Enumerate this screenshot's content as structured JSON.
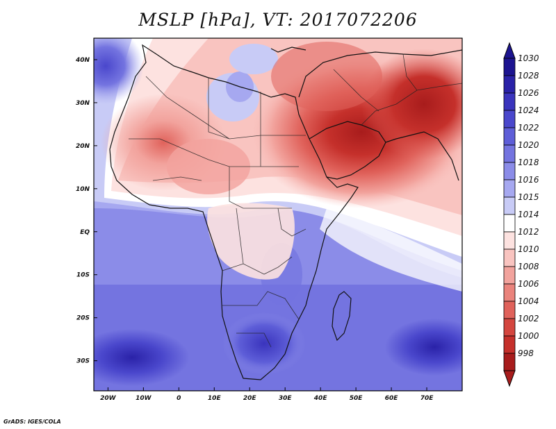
{
  "title": "MSLP [hPa], VT: 2017072206",
  "credit": "GrADS: IGES/COLA",
  "map": {
    "lon_range": [
      -24,
      80
    ],
    "lat_range": [
      -37,
      45
    ],
    "lat_ticks": [
      {
        "lat": 40,
        "label": "40N"
      },
      {
        "lat": 30,
        "label": "30N"
      },
      {
        "lat": 20,
        "label": "20N"
      },
      {
        "lat": 10,
        "label": "10N"
      },
      {
        "lat": 0,
        "label": "EQ"
      },
      {
        "lat": -10,
        "label": "10S"
      },
      {
        "lat": -20,
        "label": "20S"
      },
      {
        "lat": -30,
        "label": "30S"
      }
    ],
    "lon_ticks": [
      {
        "lon": -20,
        "label": "20W"
      },
      {
        "lon": -10,
        "label": "10W"
      },
      {
        "lon": 0,
        "label": "0"
      },
      {
        "lon": 10,
        "label": "10E"
      },
      {
        "lon": 20,
        "label": "20E"
      },
      {
        "lon": 30,
        "label": "30E"
      },
      {
        "lon": 40,
        "label": "40E"
      },
      {
        "lon": 50,
        "label": "50E"
      },
      {
        "lon": 60,
        "label": "60E"
      },
      {
        "lon": 70,
        "label": "70E"
      }
    ]
  },
  "colorbar": {
    "levels": [
      {
        "label": "1030",
        "color": "#1c1490"
      },
      {
        "label": "1028",
        "color": "#2a22a8"
      },
      {
        "label": "1026",
        "color": "#3a34bd"
      },
      {
        "label": "1024",
        "color": "#4a47cc"
      },
      {
        "label": "1022",
        "color": "#5e5ed8"
      },
      {
        "label": "1020",
        "color": "#7474e0"
      },
      {
        "label": "1018",
        "color": "#8b8ce8"
      },
      {
        "label": "1016",
        "color": "#a6a8f0"
      },
      {
        "label": "1015",
        "color": "#c8cbf6"
      },
      {
        "label": "1014",
        "color": "#ffffff"
      },
      {
        "label": "1012",
        "color": "#fde2e0"
      },
      {
        "label": "1010",
        "color": "#f9c4c0"
      },
      {
        "label": "1008",
        "color": "#f2a39d"
      },
      {
        "label": "1006",
        "color": "#ea837c"
      },
      {
        "label": "1004",
        "color": "#e0625b"
      },
      {
        "label": "1002",
        "color": "#d4463f"
      },
      {
        "label": "1000",
        "color": "#c5302b"
      },
      {
        "label": "998",
        "color": "#a81c1c"
      }
    ],
    "top_extension_color": "#1c1490",
    "bottom_extension_color": "#a81c1c"
  }
}
